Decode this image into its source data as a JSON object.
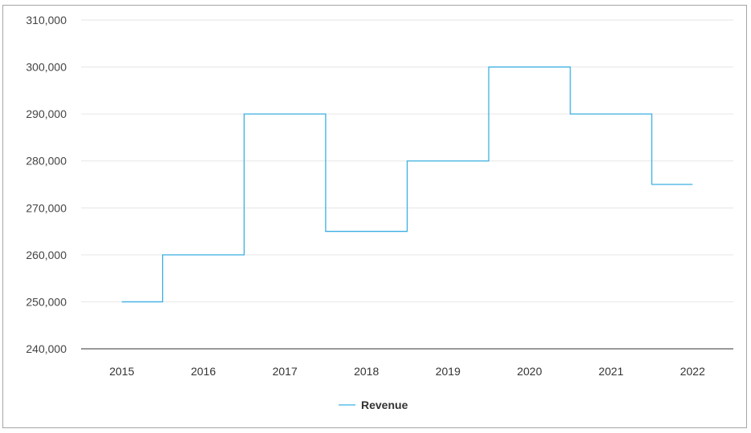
{
  "chart_data": {
    "type": "line",
    "step": true,
    "categories": [
      "2015",
      "2016",
      "2017",
      "2018",
      "2019",
      "2020",
      "2021",
      "2022"
    ],
    "series": [
      {
        "name": "Revenue",
        "color": "#3ab0e2",
        "values": [
          250000,
          260000,
          290000,
          265000,
          280000,
          300000,
          290000,
          275000
        ]
      }
    ],
    "y_ticks": [
      "240,000",
      "250,000",
      "260,000",
      "270,000",
      "280,000",
      "290,000",
      "300,000",
      "310,000"
    ],
    "ylim": [
      240000,
      310000
    ],
    "grid": true,
    "legend_position": "bottom-center",
    "title": "",
    "xlabel": "",
    "ylabel": ""
  }
}
